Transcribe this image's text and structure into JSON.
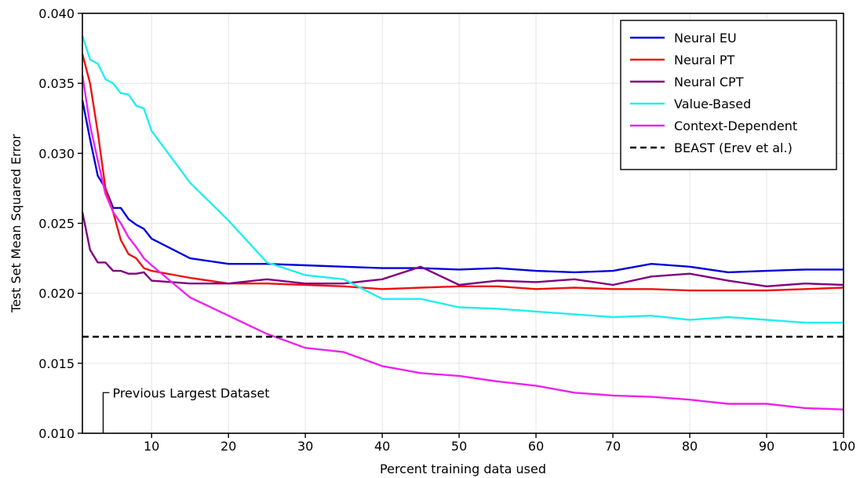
{
  "chart_data": {
    "type": "line",
    "xlabel": "Percent training data used",
    "ylabel": "Test Set Mean Squared Error",
    "xlim": [
      1,
      100
    ],
    "ylim": [
      0.01,
      0.04
    ],
    "xticks": [
      10,
      20,
      30,
      40,
      50,
      60,
      70,
      80,
      90,
      100
    ],
    "yticks": [
      0.01,
      0.015,
      0.02,
      0.025,
      0.03,
      0.035,
      0.04
    ],
    "ytick_labels": [
      "0.010",
      "0.015",
      "0.020",
      "0.025",
      "0.030",
      "0.035",
      "0.040"
    ],
    "grid": true,
    "legend_position": "top-right",
    "series": [
      {
        "name": "Neural EU",
        "color": "#0000dd",
        "style": "solid",
        "points": [
          [
            1,
            0.0338
          ],
          [
            2,
            0.031
          ],
          [
            3,
            0.0284
          ],
          [
            4,
            0.0275
          ],
          [
            5,
            0.0261
          ],
          [
            6,
            0.0261
          ],
          [
            7,
            0.0253
          ],
          [
            8,
            0.0249
          ],
          [
            9,
            0.0246
          ],
          [
            10,
            0.0239
          ],
          [
            15,
            0.0225
          ],
          [
            20,
            0.0221
          ],
          [
            25,
            0.0221
          ],
          [
            30,
            0.022
          ],
          [
            35,
            0.0219
          ],
          [
            40,
            0.0218
          ],
          [
            45,
            0.0218
          ],
          [
            50,
            0.0217
          ],
          [
            55,
            0.0218
          ],
          [
            60,
            0.0216
          ],
          [
            65,
            0.0215
          ],
          [
            70,
            0.0216
          ],
          [
            75,
            0.0221
          ],
          [
            80,
            0.0219
          ],
          [
            85,
            0.0215
          ],
          [
            90,
            0.0216
          ],
          [
            95,
            0.0217
          ],
          [
            100,
            0.0217
          ]
        ]
      },
      {
        "name": "Neural PT",
        "color": "#ee1111",
        "style": "solid",
        "points": [
          [
            1,
            0.0371
          ],
          [
            2,
            0.035
          ],
          [
            3,
            0.0315
          ],
          [
            4,
            0.0275
          ],
          [
            5,
            0.0258
          ],
          [
            6,
            0.0238
          ],
          [
            7,
            0.0228
          ],
          [
            8,
            0.0225
          ],
          [
            9,
            0.0218
          ],
          [
            10,
            0.0216
          ],
          [
            15,
            0.0211
          ],
          [
            20,
            0.0207
          ],
          [
            25,
            0.0207
          ],
          [
            30,
            0.0206
          ],
          [
            35,
            0.0205
          ],
          [
            40,
            0.0203
          ],
          [
            45,
            0.0204
          ],
          [
            50,
            0.0205
          ],
          [
            55,
            0.0205
          ],
          [
            60,
            0.0203
          ],
          [
            65,
            0.0204
          ],
          [
            70,
            0.0203
          ],
          [
            75,
            0.0203
          ],
          [
            80,
            0.0202
          ],
          [
            85,
            0.0202
          ],
          [
            90,
            0.0202
          ],
          [
            95,
            0.0203
          ],
          [
            100,
            0.0204
          ]
        ]
      },
      {
        "name": "Neural CPT",
        "color": "#800080",
        "style": "solid",
        "points": [
          [
            1,
            0.0258
          ],
          [
            2,
            0.0231
          ],
          [
            3,
            0.0222
          ],
          [
            4,
            0.0222
          ],
          [
            5,
            0.0216
          ],
          [
            6,
            0.0216
          ],
          [
            7,
            0.0214
          ],
          [
            8,
            0.0214
          ],
          [
            9,
            0.0215
          ],
          [
            10,
            0.0209
          ],
          [
            15,
            0.0207
          ],
          [
            20,
            0.0207
          ],
          [
            25,
            0.021
          ],
          [
            30,
            0.0207
          ],
          [
            35,
            0.0207
          ],
          [
            40,
            0.021
          ],
          [
            45,
            0.0219
          ],
          [
            50,
            0.0206
          ],
          [
            55,
            0.0209
          ],
          [
            60,
            0.0208
          ],
          [
            65,
            0.021
          ],
          [
            70,
            0.0206
          ],
          [
            75,
            0.0212
          ],
          [
            80,
            0.0214
          ],
          [
            85,
            0.0209
          ],
          [
            90,
            0.0205
          ],
          [
            95,
            0.0207
          ],
          [
            100,
            0.0206
          ]
        ]
      },
      {
        "name": "Value-Based",
        "color": "#22eeee",
        "style": "solid",
        "points": [
          [
            1,
            0.0384
          ],
          [
            2,
            0.0367
          ],
          [
            3,
            0.0364
          ],
          [
            4,
            0.0353
          ],
          [
            5,
            0.035
          ],
          [
            6,
            0.0343
          ],
          [
            7,
            0.0342
          ],
          [
            8,
            0.0334
          ],
          [
            9,
            0.0332
          ],
          [
            10,
            0.0316
          ],
          [
            15,
            0.0279
          ],
          [
            20,
            0.0252
          ],
          [
            25,
            0.0222
          ],
          [
            30,
            0.0213
          ],
          [
            35,
            0.021
          ],
          [
            40,
            0.0196
          ],
          [
            45,
            0.0196
          ],
          [
            50,
            0.019
          ],
          [
            55,
            0.0189
          ],
          [
            60,
            0.0187
          ],
          [
            65,
            0.0185
          ],
          [
            70,
            0.0183
          ],
          [
            75,
            0.0184
          ],
          [
            80,
            0.0181
          ],
          [
            85,
            0.0183
          ],
          [
            90,
            0.0181
          ],
          [
            95,
            0.0179
          ],
          [
            100,
            0.0179
          ]
        ]
      },
      {
        "name": "Context-Dependent",
        "color": "#ee22ee",
        "style": "solid",
        "points": [
          [
            1,
            0.0356
          ],
          [
            2,
            0.032
          ],
          [
            3,
            0.0295
          ],
          [
            4,
            0.0271
          ],
          [
            5,
            0.0258
          ],
          [
            6,
            0.025
          ],
          [
            7,
            0.024
          ],
          [
            8,
            0.0233
          ],
          [
            9,
            0.0225
          ],
          [
            10,
            0.022
          ],
          [
            15,
            0.0197
          ],
          [
            20,
            0.0184
          ],
          [
            25,
            0.0171
          ],
          [
            30,
            0.0161
          ],
          [
            35,
            0.0158
          ],
          [
            40,
            0.0148
          ],
          [
            45,
            0.0143
          ],
          [
            50,
            0.0141
          ],
          [
            55,
            0.0137
          ],
          [
            60,
            0.0134
          ],
          [
            65,
            0.0129
          ],
          [
            70,
            0.0127
          ],
          [
            75,
            0.0126
          ],
          [
            80,
            0.0124
          ],
          [
            85,
            0.0121
          ],
          [
            90,
            0.0121
          ],
          [
            95,
            0.0118
          ],
          [
            100,
            0.0117
          ]
        ]
      },
      {
        "name": "BEAST (Erev et al.)",
        "color": "#000000",
        "style": "dashed",
        "points": [
          [
            1,
            0.0169
          ],
          [
            100,
            0.0169
          ]
        ]
      }
    ],
    "annotations": [
      {
        "text": "Previous Largest Dataset",
        "x": 3.7,
        "y_top": 0.0129
      }
    ]
  }
}
